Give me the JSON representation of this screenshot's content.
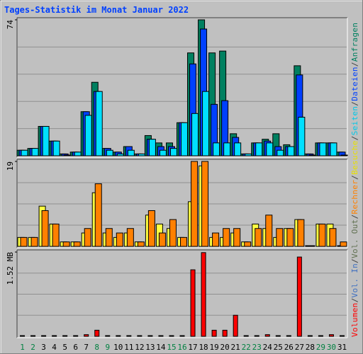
{
  "title": "Tages-Statistik im Monat Januar 2022",
  "categories": [
    "1",
    "2",
    "3",
    "4",
    "5",
    "6",
    "7",
    "8",
    "9",
    "10",
    "11",
    "12",
    "13",
    "14",
    "15",
    "16",
    "17",
    "18",
    "19",
    "20",
    "21",
    "22",
    "23",
    "24",
    "25",
    "26",
    "27",
    "28",
    "29",
    "30",
    "31"
  ],
  "category_colors": [
    "#008040",
    "#008040",
    "#000000",
    "#000000",
    "#000000",
    "#000000",
    "#000000",
    "#008040",
    "#008040",
    "#000000",
    "#000000",
    "#000000",
    "#000000",
    "#000000",
    "#008040",
    "#008040",
    "#000000",
    "#000000",
    "#000000",
    "#000000",
    "#000000",
    "#008040",
    "#008040",
    "#000000",
    "#000000",
    "#000000",
    "#000000",
    "#000000",
    "#008040",
    "#008040",
    "#000000"
  ],
  "legend_separator": "/",
  "legend": [
    {
      "name": "Volumen",
      "color": "#ff0000"
    },
    {
      "name": "Vol. In",
      "color": "#4070c0"
    },
    {
      "name": "Vol. Out",
      "color": "#607050"
    },
    {
      "name": "Rechner",
      "color": "#ff8000"
    },
    {
      "name": "Besuche",
      "color": "#e8e000"
    },
    {
      "name": "Seiten",
      "color": "#00c8e8"
    },
    {
      "name": "Dateien",
      "color": "#0040ff"
    },
    {
      "name": "Anfragen",
      "color": "#008060"
    }
  ],
  "chart_data": [
    {
      "type": "bar",
      "ylim": [
        0,
        74
      ],
      "yticks": [
        74
      ],
      "series": [
        {
          "color": "#008060",
          "values": [
            3,
            4,
            16,
            8,
            1,
            2,
            24,
            40,
            4,
            2,
            5,
            1,
            11,
            7,
            7,
            18,
            56,
            74,
            56,
            57,
            12,
            1,
            7,
            9,
            12,
            6,
            49,
            1,
            7,
            7,
            2
          ]
        },
        {
          "color": "#0040ff",
          "values": [
            3,
            4,
            16,
            8,
            1,
            2,
            24,
            35,
            4,
            2,
            5,
            1,
            9,
            5,
            5,
            18,
            50,
            69,
            28,
            30,
            10,
            1,
            7,
            8,
            5,
            5,
            44,
            1,
            7,
            7,
            2
          ]
        },
        {
          "color": "#00e0ff",
          "values": [
            3,
            4,
            16,
            8,
            0,
            2,
            22,
            35,
            3,
            1,
            3,
            1,
            9,
            3,
            4,
            18,
            23,
            35,
            7,
            7,
            7,
            1,
            7,
            7,
            3,
            5,
            21,
            0,
            7,
            7,
            0
          ]
        }
      ]
    },
    {
      "type": "bar",
      "ylim": [
        0,
        19
      ],
      "yticks": [
        19
      ],
      "series": [
        {
          "color": "#ffff40",
          "values": [
            2,
            2,
            9,
            5,
            1,
            1,
            3,
            12,
            3,
            2,
            3,
            1,
            7,
            5,
            4,
            2,
            10,
            18,
            2,
            2,
            3,
            1,
            5,
            4,
            2,
            4,
            6,
            0,
            5,
            5,
            0
          ]
        },
        {
          "color": "#ff8000",
          "values": [
            2,
            2,
            8,
            5,
            1,
            1,
            4,
            14,
            4,
            3,
            4,
            1,
            8,
            3,
            6,
            2,
            19,
            19,
            3,
            4,
            4,
            1,
            4,
            7,
            4,
            4,
            6,
            0,
            5,
            4,
            1
          ]
        }
      ]
    },
    {
      "type": "bar",
      "ylim": [
        0,
        1.52
      ],
      "yticks": [
        {
          "value": 1.52,
          "label": "1.52 MB"
        }
      ],
      "series": [
        {
          "color": "#ff0000",
          "values": [
            0.01,
            0.01,
            0.01,
            0.01,
            0.01,
            0.01,
            0.03,
            0.11,
            0.01,
            0.01,
            0.01,
            0.01,
            0.01,
            0.01,
            0.01,
            0.01,
            1.2,
            1.51,
            0.11,
            0.11,
            0.38,
            0.01,
            0.01,
            0.03,
            0.01,
            0.01,
            1.43,
            0.01,
            0.01,
            0.03,
            0.01
          ]
        }
      ]
    }
  ]
}
